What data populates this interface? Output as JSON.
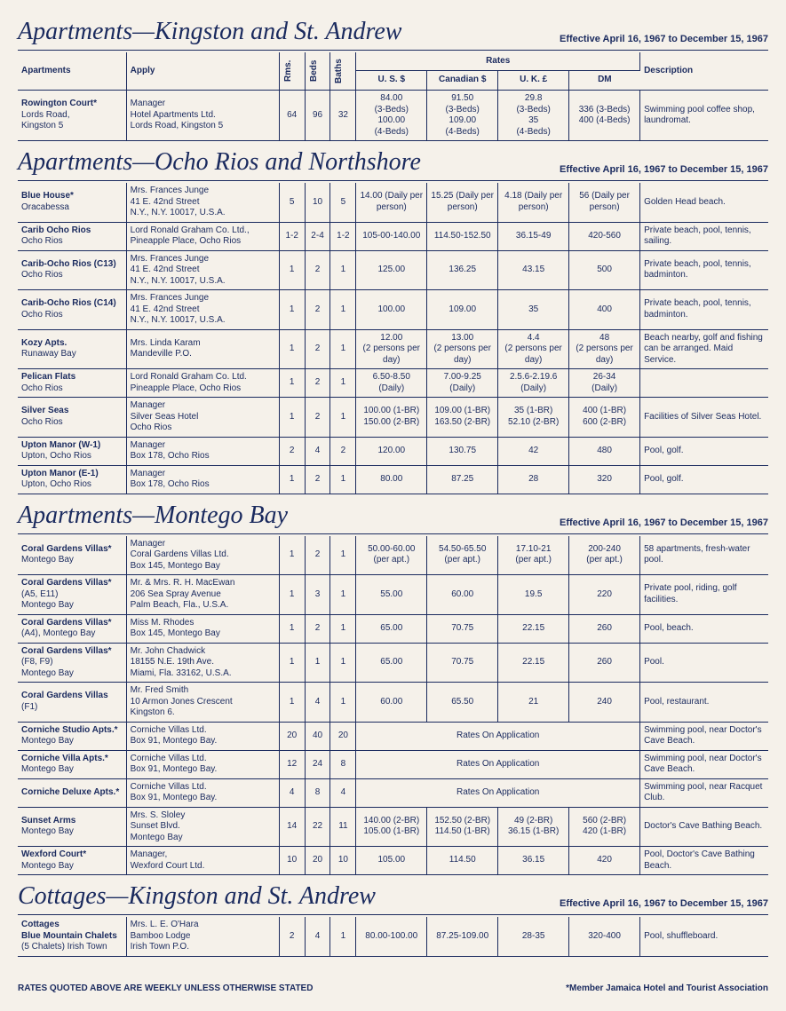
{
  "effective": "Effective April 16, 1967 to December 15, 1967",
  "headers": {
    "apt": "Apartments",
    "apply": "Apply",
    "rms": "Rms.",
    "beds": "Beds",
    "baths": "Baths",
    "rates": "Rates",
    "us": "U. S. $",
    "can": "Canadian $",
    "uk": "U. K. £",
    "dm": "DM",
    "desc": "Description"
  },
  "footer": {
    "left": "RATES QUOTED ABOVE ARE WEEKLY UNLESS OTHERWISE STATED",
    "right": "*Member Jamaica Hotel and Tourist Association"
  },
  "sections": [
    {
      "title": "Apartments—Kingston and St. Andrew",
      "showHeader": true,
      "rows": [
        {
          "name": "Rowington Court*",
          "loc": "Lords Road,\nKingston 5",
          "apply": "Manager\nHotel Apartments Ltd.\nLords Road, Kingston 5",
          "rms": "64",
          "beds": "96",
          "baths": "32",
          "us": "84.00\n(3-Beds)\n100.00\n(4-Beds)",
          "can": "91.50\n(3-Beds)\n109.00\n(4-Beds)",
          "uk": "29.8\n(3-Beds)\n35\n(4-Beds)",
          "dm": "336 (3-Beds)\n400 (4-Beds)",
          "desc": "Swimming pool coffee shop, laundromat."
        }
      ]
    },
    {
      "title": "Apartments—Ocho Rios and Northshore",
      "showHeader": false,
      "rows": [
        {
          "name": "Blue House*",
          "loc": "Oracabessa",
          "apply": "Mrs. Frances Junge\n41 E. 42nd Street\nN.Y., N.Y. 10017, U.S.A.",
          "rms": "5",
          "beds": "10",
          "baths": "5",
          "us": "14.00 (Daily per person)",
          "can": "15.25 (Daily per person)",
          "uk": "4.18 (Daily per person)",
          "dm": "56 (Daily per person)",
          "desc": "Golden Head beach."
        },
        {
          "name": "Carib Ocho Rios",
          "loc": "Ocho Rios",
          "apply": "Lord Ronald Graham Co. Ltd.,\nPineapple Place, Ocho Rios",
          "rms": "1-2",
          "beds": "2-4",
          "baths": "1-2",
          "us": "105-00-140.00",
          "can": "114.50-152.50",
          "uk": "36.15-49",
          "dm": "420-560",
          "desc": "Private beach, pool, tennis, sailing."
        },
        {
          "name": "Carib-Ocho Rios (C13)",
          "loc": "Ocho Rios",
          "apply": "Mrs. Frances Junge\n41 E. 42nd Street\nN.Y., N.Y. 10017, U.S.A.",
          "rms": "1",
          "beds": "2",
          "baths": "1",
          "us": "125.00",
          "can": "136.25",
          "uk": "43.15",
          "dm": "500",
          "desc": "Private beach, pool, tennis, badminton."
        },
        {
          "name": "Carib-Ocho Rios (C14)",
          "loc": "Ocho Rios",
          "apply": "Mrs. Frances Junge\n41 E. 42nd Street\nN.Y., N.Y. 10017, U.S.A.",
          "rms": "1",
          "beds": "2",
          "baths": "1",
          "us": "100.00",
          "can": "109.00",
          "uk": "35",
          "dm": "400",
          "desc": "Private beach, pool, tennis, badminton."
        },
        {
          "name": "Kozy Apts.",
          "loc": "Runaway Bay",
          "apply": "Mrs. Linda Karam\nMandeville P.O.",
          "rms": "1",
          "beds": "2",
          "baths": "1",
          "us": "12.00\n(2 persons per day)",
          "can": "13.00\n(2 persons per day)",
          "uk": "4.4\n(2 persons per day)",
          "dm": "48\n(2 persons per day)",
          "desc": "Beach nearby, golf and fishing can be arranged. Maid Service."
        },
        {
          "name": "Pelican Flats",
          "loc": "Ocho Rios",
          "apply": "Lord Ronald Graham Co. Ltd.\nPineapple Place, Ocho Rios",
          "rms": "1",
          "beds": "2",
          "baths": "1",
          "us": "6.50-8.50\n(Daily)",
          "can": "7.00-9.25\n(Daily)",
          "uk": "2.5.6-2.19.6\n(Daily)",
          "dm": "26-34\n(Daily)",
          "desc": ""
        },
        {
          "name": "Silver Seas",
          "loc": "Ocho Rios",
          "apply": "Manager\nSilver Seas Hotel\nOcho Rios",
          "rms": "1",
          "beds": "2",
          "baths": "1",
          "us": "100.00 (1-BR)\n150.00 (2-BR)",
          "can": "109.00 (1-BR)\n163.50 (2-BR)",
          "uk": "35 (1-BR)\n52.10 (2-BR)",
          "dm": "400 (1-BR)\n600 (2-BR)",
          "desc": "Facilities of Silver Seas Hotel."
        },
        {
          "name": "Upton Manor (W-1)",
          "loc": "Upton, Ocho Rios",
          "apply": "Manager\nBox 178, Ocho Rios",
          "rms": "2",
          "beds": "4",
          "baths": "2",
          "us": "120.00",
          "can": "130.75",
          "uk": "42",
          "dm": "480",
          "desc": "Pool, golf."
        },
        {
          "name": "Upton Manor (E-1)",
          "loc": "Upton, Ocho Rios",
          "apply": "Manager\nBox 178, Ocho Rios",
          "rms": "1",
          "beds": "2",
          "baths": "1",
          "us": "80.00",
          "can": "87.25",
          "uk": "28",
          "dm": "320",
          "desc": "Pool, golf."
        }
      ]
    },
    {
      "title": "Apartments—Montego Bay",
      "showHeader": false,
      "rows": [
        {
          "name": "Coral Gardens Villas*",
          "loc": "Montego Bay",
          "apply": "Manager\nCoral Gardens Villas Ltd.\nBox 145, Montego Bay",
          "rms": "1",
          "beds": "2",
          "baths": "1",
          "us": "50.00-60.00\n(per apt.)",
          "can": "54.50-65.50\n(per apt.)",
          "uk": "17.10-21\n(per apt.)",
          "dm": "200-240\n(per apt.)",
          "desc": "58 apartments, fresh-water pool."
        },
        {
          "name": "Coral Gardens Villas*",
          "loc": "(A5, E11)\nMontego Bay",
          "apply": "Mr. & Mrs. R. H. MacEwan\n206 Sea Spray Avenue\nPalm Beach, Fla., U.S.A.",
          "rms": "1",
          "beds": "3",
          "baths": "1",
          "us": "55.00",
          "can": "60.00",
          "uk": "19.5",
          "dm": "220",
          "desc": "Private pool, riding, golf facilities."
        },
        {
          "name": "Coral Gardens Villas*",
          "loc": "(A4), Montego Bay",
          "apply": "Miss M. Rhodes\nBox 145, Montego Bay",
          "rms": "1",
          "beds": "2",
          "baths": "1",
          "us": "65.00",
          "can": "70.75",
          "uk": "22.15",
          "dm": "260",
          "desc": "Pool, beach."
        },
        {
          "name": "Coral Gardens Villas*",
          "loc": "(F8, F9)\nMontego Bay",
          "apply": "Mr. John Chadwick\n18155 N.E. 19th Ave.\nMiami, Fla. 33162, U.S.A.",
          "rms": "1",
          "beds": "1",
          "baths": "1",
          "us": "65.00",
          "can": "70.75",
          "uk": "22.15",
          "dm": "260",
          "desc": "Pool."
        },
        {
          "name": "Coral Gardens Villas",
          "loc": "(F1)",
          "apply": "Mr. Fred Smith\n10 Armon Jones Crescent\nKingston 6.",
          "rms": "1",
          "beds": "4",
          "baths": "1",
          "us": "60.00",
          "can": "65.50",
          "uk": "21",
          "dm": "240",
          "desc": "Pool, restaurant."
        },
        {
          "name": "Corniche Studio Apts.*",
          "loc": "Montego Bay",
          "apply": "Corniche Villas Ltd.\nBox 91, Montego Bay.",
          "rms": "20",
          "beds": "40",
          "baths": "20",
          "merged": "Rates On Application",
          "desc": "Swimming pool, near Doctor's Cave Beach."
        },
        {
          "name": "Corniche Villa Apts.*",
          "loc": "Montego Bay",
          "apply": "Corniche Villas Ltd.\nBox 91, Montego Bay.",
          "rms": "12",
          "beds": "24",
          "baths": "8",
          "merged": "Rates On Application",
          "desc": "Swimming pool, near Doctor's Cave Beach."
        },
        {
          "name": "Corniche Deluxe Apts.*",
          "loc": "",
          "apply": "Corniche Villas Ltd.\nBox 91, Montego Bay.",
          "rms": "4",
          "beds": "8",
          "baths": "4",
          "merged": "Rates On Application",
          "desc": "Swimming pool, near Racquet Club."
        },
        {
          "name": "Sunset Arms",
          "loc": "Montego Bay",
          "apply": "Mrs. S. Sloley\nSunset Blvd.\nMontego Bay",
          "rms": "14",
          "beds": "22",
          "baths": "11",
          "us": "140.00 (2-BR)\n105.00 (1-BR)",
          "can": "152.50 (2-BR)\n114.50 (1-BR)",
          "uk": "49 (2-BR)\n36.15 (1-BR)",
          "dm": "560 (2-BR)\n420 (1-BR)",
          "desc": "Doctor's Cave Bathing Beach."
        },
        {
          "name": "Wexford Court*",
          "loc": "Montego Bay",
          "apply": "Manager,\nWexford Court Ltd.",
          "rms": "10",
          "beds": "20",
          "baths": "10",
          "us": "105.00",
          "can": "114.50",
          "uk": "36.15",
          "dm": "420",
          "desc": "Pool, Doctor's Cave Bathing Beach."
        }
      ]
    },
    {
      "title": "Cottages—Kingston and St. Andrew",
      "showHeader": false,
      "rows": [
        {
          "name": "Cottages\nBlue Mountain Chalets",
          "loc": "(5 Chalets) Irish Town",
          "apply": "Mrs. L. E. O'Hara\nBamboo Lodge\nIrish Town P.O.",
          "rms": "2",
          "beds": "4",
          "baths": "1",
          "us": "80.00-100.00",
          "can": "87.25-109.00",
          "uk": "28-35",
          "dm": "320-400",
          "desc": "Pool, shuffleboard."
        }
      ]
    }
  ]
}
